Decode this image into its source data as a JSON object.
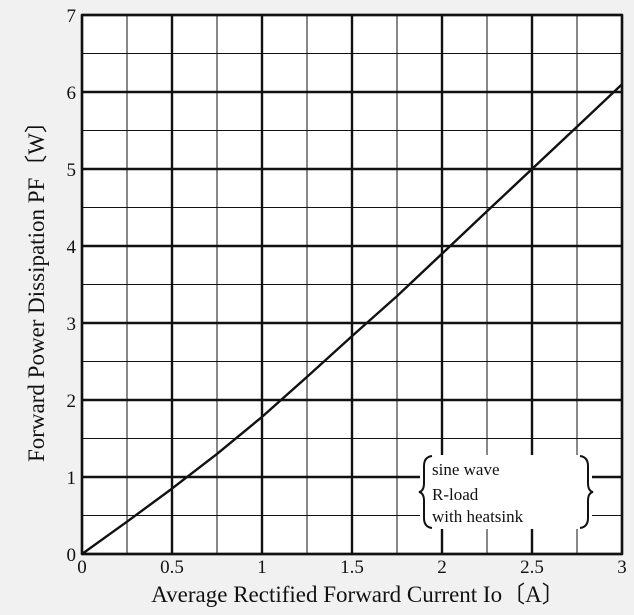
{
  "chart_data": {
    "type": "line",
    "xlabel": "Average Rectified Forward Current Io〔A〕",
    "ylabel": "Forward Power Dissipation PF〔W〕",
    "xlim": [
      0,
      3
    ],
    "ylim": [
      0,
      7
    ],
    "x_ticks": [
      "0",
      "0.5",
      "1",
      "1.5",
      "2",
      "2.5",
      "3"
    ],
    "y_ticks": [
      "0",
      "1",
      "2",
      "3",
      "4",
      "5",
      "6",
      "7"
    ],
    "grid": true,
    "series": [
      {
        "x": [
          0,
          0.25,
          0.5,
          0.75,
          1.0,
          1.25,
          1.5,
          1.75,
          2.0,
          2.25,
          2.5,
          2.75,
          3.0
        ],
        "y": [
          0,
          0.42,
          0.85,
          1.3,
          1.78,
          2.3,
          2.83,
          3.35,
          3.9,
          4.45,
          5.0,
          5.55,
          6.1
        ]
      }
    ],
    "annotation": {
      "lines": [
        "sine wave",
        "R-load",
        "with heatsink"
      ]
    }
  },
  "colors": {
    "background": "#f1f1f1",
    "plot_background": "#ffffff",
    "grid_major": "#111111",
    "grid_minor": "#111111",
    "curve": "#111111"
  }
}
